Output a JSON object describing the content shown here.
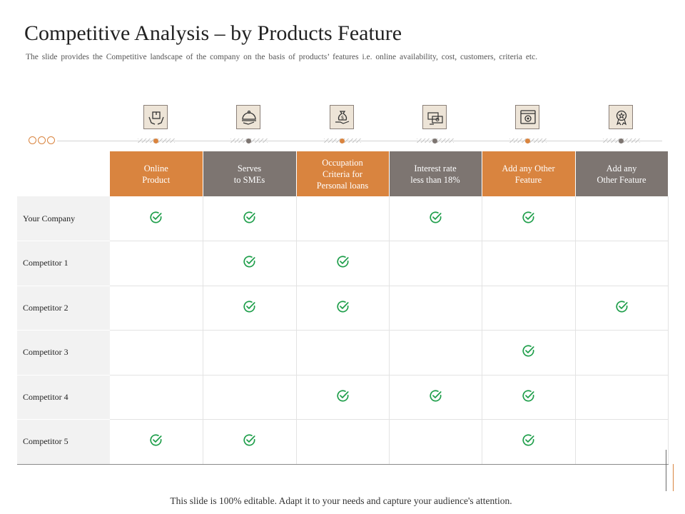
{
  "title": "Competitive Analysis – by Products Feature",
  "subtitle": "The slide provides the Competitive landscape of the company on the basis of products’ features i.e. online availability, cost, customers, criteria etc.",
  "colors": {
    "accent": "#d9843f",
    "secondary": "#7d7571",
    "check": "#1e9e4a"
  },
  "icons": [
    "hands-box-icon",
    "serving-dish-icon",
    "money-bag-hand-icon",
    "cash-stack-icon",
    "web-settings-icon",
    "award-badge-icon"
  ],
  "columns": [
    {
      "lines": [
        "Online",
        "Product"
      ],
      "color": "orange"
    },
    {
      "lines": [
        "Serves",
        "to SMEs"
      ],
      "color": "gray"
    },
    {
      "lines": [
        "Occupation",
        "Criteria for",
        "Personal loans"
      ],
      "color": "orange"
    },
    {
      "lines": [
        "Interest rate",
        "less than 18%"
      ],
      "color": "gray"
    },
    {
      "lines": [
        "Add any Other",
        "Feature"
      ],
      "color": "orange"
    },
    {
      "lines": [
        "Add any",
        "Other Feature"
      ],
      "color": "gray"
    }
  ],
  "rows": [
    {
      "name": "Your Company",
      "checks": [
        true,
        true,
        false,
        true,
        true,
        false
      ]
    },
    {
      "name": "Competitor  1",
      "checks": [
        false,
        true,
        true,
        false,
        false,
        false
      ]
    },
    {
      "name": "Competitor  2",
      "checks": [
        false,
        true,
        true,
        false,
        false,
        true
      ]
    },
    {
      "name": "Competitor  3",
      "checks": [
        false,
        false,
        false,
        false,
        true,
        false
      ]
    },
    {
      "name": "Competitor  4",
      "checks": [
        false,
        false,
        true,
        true,
        true,
        false
      ]
    },
    {
      "name": "Competitor  5",
      "checks": [
        true,
        true,
        false,
        false,
        true,
        false
      ]
    }
  ],
  "footer": "This slide is 100% editable. Adapt it to your needs and capture your audience's attention."
}
